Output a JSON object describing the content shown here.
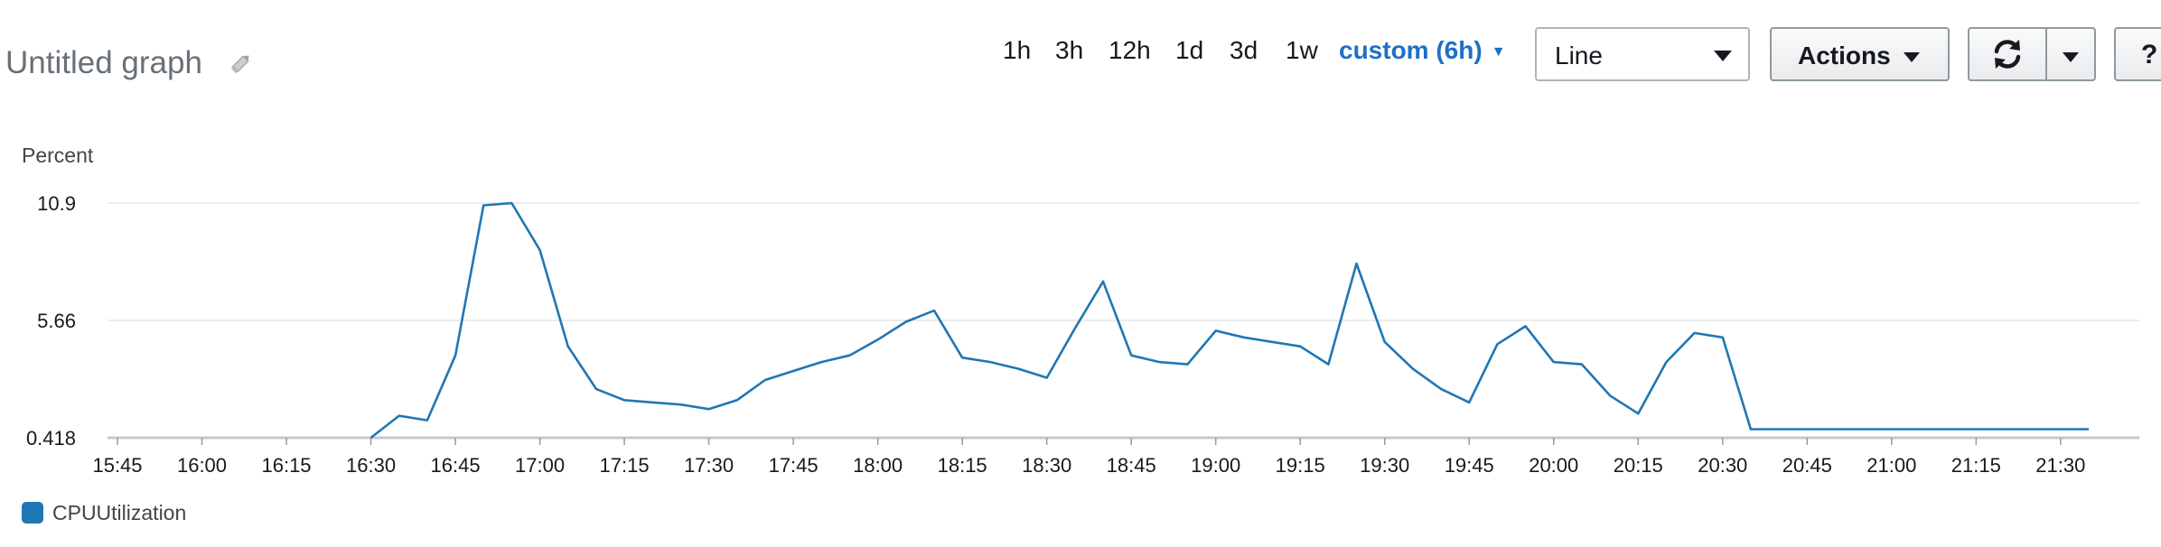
{
  "header": {
    "title": "Untitled graph",
    "time_ranges": [
      {
        "label": "1h"
      },
      {
        "label": "3h"
      },
      {
        "label": "12h"
      },
      {
        "label": "1d"
      },
      {
        "label": "3d"
      },
      {
        "label": "1w"
      },
      {
        "label": "custom (6h)",
        "active": true
      }
    ],
    "view_select": {
      "value": "Line"
    },
    "actions_label": "Actions",
    "help_label": "?"
  },
  "colors": {
    "accent": "#1f6fc5",
    "series": "#1f77b4"
  },
  "chart_data": {
    "type": "line",
    "ylabel": "Percent",
    "yticks": [
      0.418,
      5.66,
      10.9
    ],
    "ytick_labels": [
      "0.418",
      "5.66",
      "10.9"
    ],
    "ylim": [
      0.418,
      10.9
    ],
    "xlim": [
      "15:45",
      "21:35"
    ],
    "xtick_labels": [
      "15:45",
      "16:00",
      "16:15",
      "16:30",
      "16:45",
      "17:00",
      "17:15",
      "17:30",
      "17:45",
      "18:00",
      "18:15",
      "18:30",
      "18:45",
      "19:00",
      "19:15",
      "19:30",
      "19:45",
      "20:00",
      "20:15",
      "20:30",
      "20:45",
      "21:00",
      "21:15",
      "21:30"
    ],
    "grid": "horizontal",
    "legend_placement": "bottom-left",
    "series": [
      {
        "name": "CPUUtilization",
        "x": [
          "16:30",
          "16:35",
          "16:40",
          "16:45",
          "16:50",
          "16:55",
          "17:00",
          "17:05",
          "17:10",
          "17:15",
          "17:20",
          "17:25",
          "17:30",
          "17:35",
          "17:40",
          "17:45",
          "17:50",
          "17:55",
          "18:00",
          "18:05",
          "18:10",
          "18:15",
          "18:20",
          "18:25",
          "18:30",
          "18:35",
          "18:40",
          "18:45",
          "18:50",
          "18:55",
          "19:00",
          "19:05",
          "19:10",
          "19:15",
          "19:20",
          "19:25",
          "19:30",
          "19:35",
          "19:40",
          "19:45",
          "19:50",
          "19:55",
          "20:00",
          "20:05",
          "20:10",
          "20:15",
          "20:20",
          "20:25",
          "20:30",
          "20:35",
          "20:40",
          "20:45",
          "20:50",
          "20:55",
          "21:00",
          "21:05",
          "21:10",
          "21:15",
          "21:20",
          "21:25",
          "21:30",
          "21:35"
        ],
        "values": [
          0.418,
          1.4,
          1.2,
          4.1,
          10.8,
          10.9,
          8.8,
          4.5,
          2.6,
          2.1,
          2.0,
          1.9,
          1.7,
          2.1,
          3.0,
          3.4,
          3.8,
          4.1,
          4.8,
          5.6,
          6.1,
          4.0,
          3.8,
          3.5,
          3.1,
          5.3,
          7.4,
          4.1,
          3.8,
          3.7,
          5.2,
          4.9,
          4.7,
          4.5,
          3.7,
          8.2,
          4.7,
          3.5,
          2.6,
          2.0,
          4.6,
          5.4,
          3.8,
          3.7,
          2.3,
          1.5,
          3.8,
          5.1,
          4.9,
          0.8,
          0.8,
          0.8,
          0.8,
          0.8,
          0.8,
          0.8,
          0.8,
          0.8,
          0.8,
          0.8,
          0.8,
          0.8
        ]
      }
    ]
  }
}
